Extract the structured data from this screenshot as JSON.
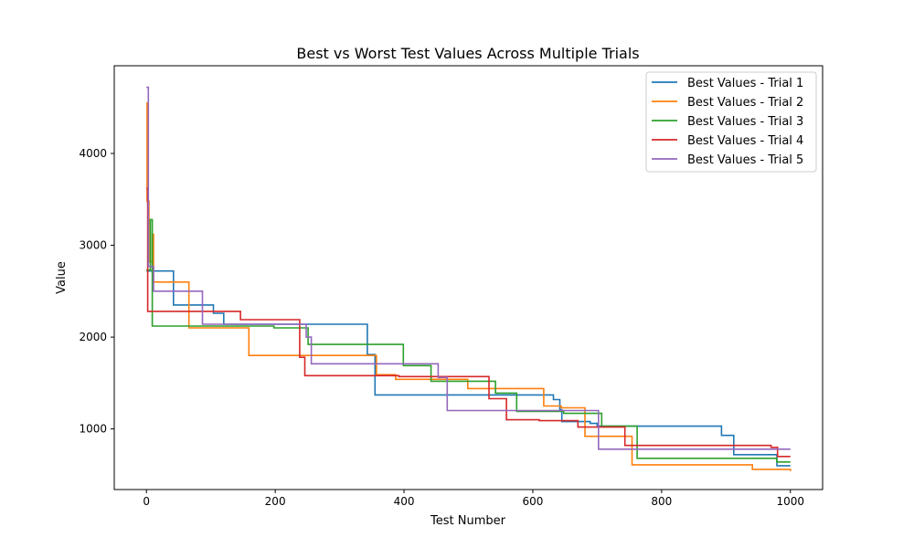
{
  "chart_data": {
    "type": "line",
    "title": "Best vs Worst Test Values Across Multiple Trials",
    "xlabel": "Test Number",
    "ylabel": "Value",
    "xlim": [
      -50,
      1050
    ],
    "ylim": [
      340,
      4955
    ],
    "x_ticks": [
      0,
      200,
      400,
      600,
      800,
      1000
    ],
    "y_ticks": [
      1000,
      2000,
      3000,
      4000
    ],
    "grid": false,
    "legend_position": "top-right",
    "series": [
      {
        "name": "Best Values - Trial 1",
        "color": "#1f77b4",
        "steps": [
          [
            0,
            2720
          ],
          [
            42,
            2350
          ],
          [
            104,
            2260
          ],
          [
            120,
            2140
          ],
          [
            343,
            1810
          ],
          [
            355,
            1370
          ],
          [
            632,
            1320
          ],
          [
            642,
            1210
          ],
          [
            645,
            1080
          ],
          [
            689,
            1060
          ],
          [
            700,
            1030
          ],
          [
            893,
            930
          ],
          [
            912,
            720
          ],
          [
            979,
            600
          ],
          [
            1000,
            600
          ]
        ]
      },
      {
        "name": "Best Values - Trial 2",
        "color": "#ff7f0e",
        "steps": [
          [
            0,
            4550
          ],
          [
            1,
            3480
          ],
          [
            4,
            2820
          ],
          [
            9,
            3120
          ],
          [
            11,
            2600
          ],
          [
            66,
            2100
          ],
          [
            159,
            1800
          ],
          [
            357,
            1590
          ],
          [
            387,
            1540
          ],
          [
            499,
            1440
          ],
          [
            617,
            1250
          ],
          [
            644,
            1230
          ],
          [
            681,
            920
          ],
          [
            754,
            610
          ],
          [
            941,
            560
          ],
          [
            1000,
            540
          ]
        ]
      },
      {
        "name": "Best Values - Trial 3",
        "color": "#2ca02c",
        "steps": [
          [
            0,
            2730
          ],
          [
            6,
            3280
          ],
          [
            9,
            2120
          ],
          [
            198,
            2100
          ],
          [
            251,
            1920
          ],
          [
            399,
            1690
          ],
          [
            442,
            1520
          ],
          [
            542,
            1390
          ],
          [
            575,
            1190
          ],
          [
            648,
            1170
          ],
          [
            707,
            1030
          ],
          [
            762,
            680
          ],
          [
            979,
            640
          ],
          [
            1000,
            640
          ]
        ]
      },
      {
        "name": "Best Values - Trial 4",
        "color": "#d62728",
        "steps": [
          [
            0,
            3620
          ],
          [
            2,
            2280
          ],
          [
            146,
            2190
          ],
          [
            238,
            1780
          ],
          [
            246,
            1580
          ],
          [
            392,
            1570
          ],
          [
            480,
            1570
          ],
          [
            532,
            1330
          ],
          [
            559,
            1100
          ],
          [
            610,
            1090
          ],
          [
            670,
            1020
          ],
          [
            743,
            820
          ],
          [
            970,
            800
          ],
          [
            980,
            700
          ],
          [
            1000,
            700
          ]
        ]
      },
      {
        "name": "Best Values - Trial 5",
        "color": "#9467bd",
        "steps": [
          [
            0,
            4720
          ],
          [
            3,
            2770
          ],
          [
            11,
            2500
          ],
          [
            87,
            2140
          ],
          [
            248,
            2000
          ],
          [
            256,
            1710
          ],
          [
            453,
            1560
          ],
          [
            467,
            1200
          ],
          [
            702,
            780
          ],
          [
            1000,
            780
          ]
        ]
      }
    ]
  }
}
